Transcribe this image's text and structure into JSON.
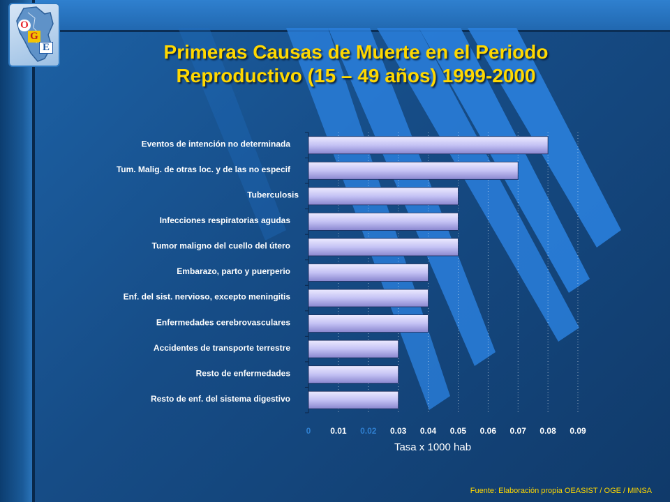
{
  "slide": {
    "title_line1": "Primeras Causas de Muerte  en el Periodo",
    "title_line2": "Reproductivo (15 – 49 años) 1999-2000",
    "source": "Fuente: Elaboración propia OEASIST / OGE / MINSA"
  },
  "logo": {
    "letter_o": "O",
    "letter_g": "G",
    "letter_e": "E",
    "icon": "peru-map-icon"
  },
  "colors": {
    "title": "#ffd800",
    "bar_fill": "#c4c2f4",
    "bar_shadow": "#8a87cf",
    "label": "#ffffff",
    "tick_faded": "#2f7fd0",
    "background": "#1a5a98"
  },
  "chart_data": {
    "type": "bar",
    "orientation": "horizontal",
    "title": "",
    "xlabel": "Tasa x 1000 hab",
    "ylabel": "",
    "categories": [
      "Eventos de intención no determinada",
      "Tum. Malig. de otras loc. y de las no especif",
      "Tuberculosis",
      "Infecciones respiratorias agudas",
      "Tumor maligno del cuello del útero",
      "Embarazo, parto y puerperio",
      "Enf. del sist. nervioso, excepto meningitis",
      "Enfermedades cerebrovasculares",
      "Accidentes de transporte terrestre",
      "Resto de enfermedades",
      "Resto de enf. del sistema digestivo"
    ],
    "values": [
      0.08,
      0.07,
      0.05,
      0.05,
      0.05,
      0.04,
      0.04,
      0.04,
      0.03,
      0.03,
      0.03
    ],
    "xlim": [
      0,
      0.09
    ],
    "xticks": [
      "0",
      "0.01",
      "0.02",
      "0.03",
      "0.04",
      "0.05",
      "0.06",
      "0.07",
      "0.08",
      "0.09"
    ],
    "faded_ticks": [
      "0",
      "0.02"
    ],
    "grid": true,
    "legend": "none"
  }
}
